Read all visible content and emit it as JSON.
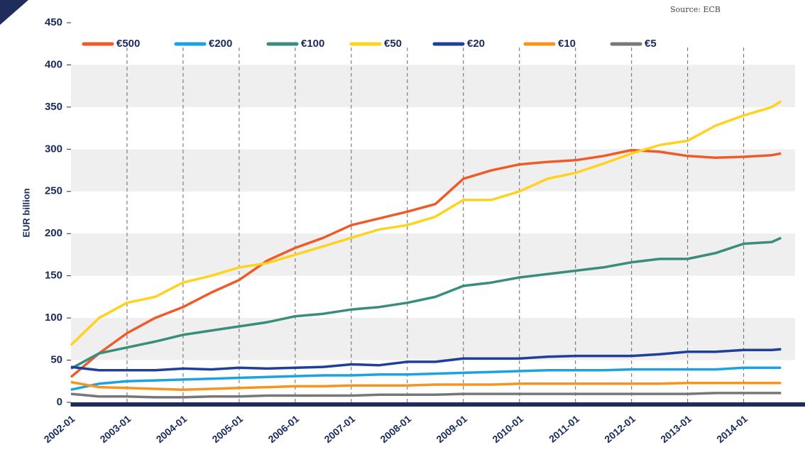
{
  "chart_data": {
    "type": "line",
    "source": "Source: ECB",
    "y_label": "EUR billion",
    "x": [
      "2002-01",
      "2002-07",
      "2003-01",
      "2003-07",
      "2004-01",
      "2004-07",
      "2005-01",
      "2005-07",
      "2006-01",
      "2006-07",
      "2007-01",
      "2007-07",
      "2008-01",
      "2008-07",
      "2009-01",
      "2009-07",
      "2010-01",
      "2010-07",
      "2011-01",
      "2011-07",
      "2012-01",
      "2012-07",
      "2013-01",
      "2013-07",
      "2014-01",
      "2014-07",
      "2014-09"
    ],
    "series": [
      {
        "name": "€500",
        "color": "#f05a28",
        "values": [
          30,
          58,
          82,
          100,
          113,
          130,
          145,
          168,
          183,
          195,
          210,
          218,
          226,
          235,
          265,
          275,
          282,
          285,
          287,
          292,
          299,
          297,
          292,
          290,
          291,
          293,
          295
        ]
      },
      {
        "name": "€200",
        "color": "#1aa3e0",
        "values": [
          15,
          22,
          25,
          26,
          27,
          28,
          29,
          30,
          31,
          32,
          32,
          33,
          33,
          34,
          35,
          36,
          37,
          38,
          38,
          38,
          39,
          39,
          39,
          39,
          41,
          41,
          41
        ]
      },
      {
        "name": "€100",
        "color": "#3a8c7c",
        "values": [
          40,
          58,
          65,
          72,
          80,
          85,
          90,
          95,
          102,
          105,
          110,
          113,
          118,
          125,
          138,
          142,
          148,
          152,
          156,
          160,
          166,
          170,
          170,
          177,
          188,
          190,
          195
        ]
      },
      {
        "name": "€50",
        "color": "#ffd21e",
        "values": [
          68,
          100,
          118,
          125,
          142,
          150,
          160,
          165,
          175,
          185,
          195,
          205,
          210,
          220,
          240,
          240,
          250,
          265,
          272,
          283,
          295,
          305,
          310,
          328,
          340,
          350,
          357
        ]
      },
      {
        "name": "€20",
        "color": "#1f3f99",
        "values": [
          42,
          38,
          38,
          38,
          40,
          39,
          41,
          40,
          41,
          42,
          45,
          44,
          48,
          48,
          52,
          52,
          52,
          54,
          55,
          55,
          55,
          57,
          60,
          60,
          62,
          62,
          63
        ]
      },
      {
        "name": "€10",
        "color": "#f7941d",
        "values": [
          24,
          18,
          17,
          16,
          15,
          16,
          17,
          18,
          19,
          19,
          20,
          20,
          20,
          21,
          21,
          21,
          22,
          22,
          22,
          22,
          22,
          22,
          23,
          23,
          23,
          23,
          23
        ]
      },
      {
        "name": "€5",
        "color": "#777777",
        "values": [
          10,
          7,
          7,
          6,
          6,
          7,
          7,
          8,
          8,
          8,
          8,
          9,
          9,
          9,
          10,
          10,
          10,
          10,
          10,
          10,
          10,
          10,
          10,
          11,
          11,
          11,
          11
        ]
      }
    ],
    "xlim": [
      "2002-01",
      "2014-12"
    ],
    "xticks": [
      "2002-01",
      "2003-01",
      "2004-01",
      "2005-01",
      "2006-01",
      "2007-01",
      "2008-01",
      "2009-01",
      "2010-01",
      "2011-01",
      "2012-01",
      "2013-01",
      "2014-01"
    ],
    "ylim": [
      0,
      450
    ],
    "yticks": [
      0,
      50,
      100,
      150,
      200,
      250,
      300,
      350,
      400,
      450
    ],
    "grid": "banded",
    "legend": "top-left"
  }
}
